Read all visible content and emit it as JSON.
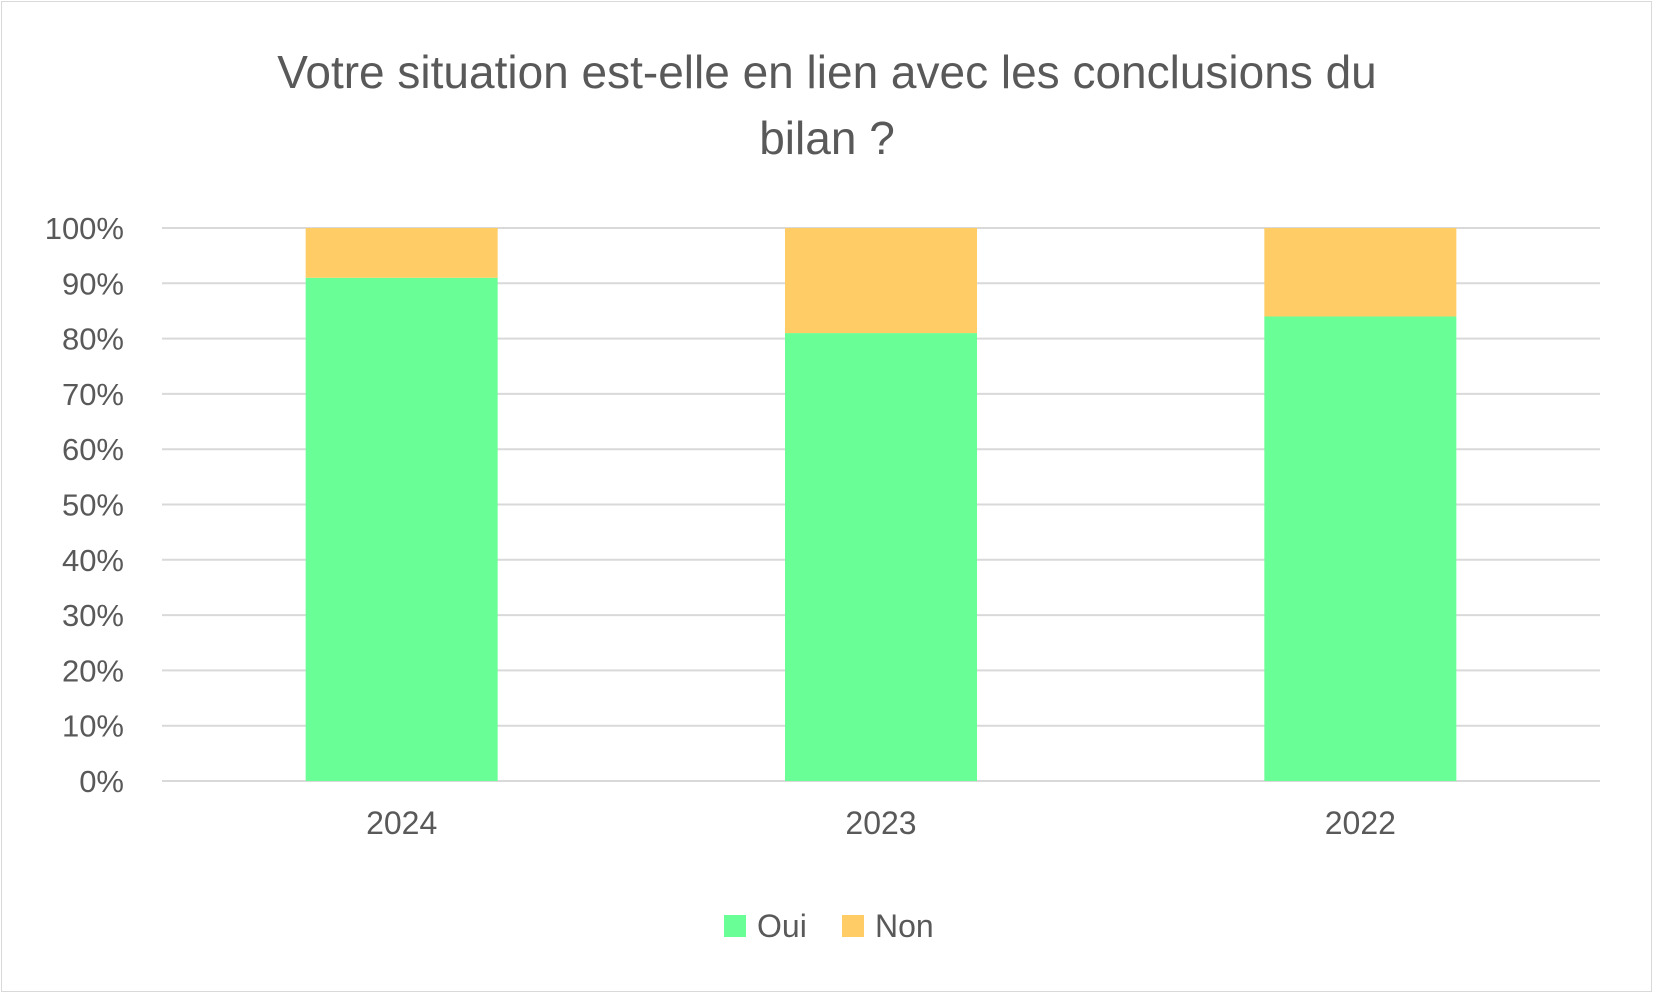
{
  "chart_data": {
    "type": "bar",
    "stacked": true,
    "title_lines": [
      "Votre situation est-elle en lien avec les conclusions du",
      "bilan ?"
    ],
    "categories": [
      "2024",
      "2023",
      "2022"
    ],
    "series": [
      {
        "name": "Oui",
        "values": [
          91,
          81,
          84
        ],
        "color": "#69ff96"
      },
      {
        "name": "Non",
        "values": [
          9,
          19,
          16
        ],
        "color": "#ffcc66"
      }
    ],
    "ylim": [
      0,
      100
    ],
    "yticks": [
      "0%",
      "10%",
      "20%",
      "30%",
      "40%",
      "50%",
      "60%",
      "70%",
      "80%",
      "90%",
      "100%"
    ],
    "grid": true,
    "legend_position": "bottom",
    "xlabel": "",
    "ylabel": ""
  }
}
